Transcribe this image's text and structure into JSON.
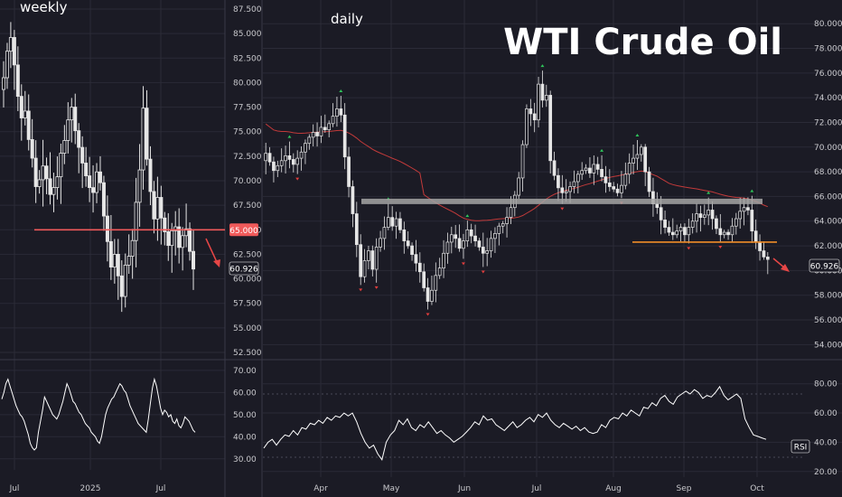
{
  "title": "WTI Crude Oil",
  "colors": {
    "background": "#1b1b25",
    "grid": "#2b2b37",
    "candle": "#e6e6e6",
    "text": "#ffffff",
    "axis_text": "#c8c8cc",
    "level_red": "#f05a5a",
    "level_orange": "#f08c28",
    "level_gray": "#a5a5a5",
    "ma_line": "#c23a3a",
    "rsi_line": "#ffffff",
    "arrow_red": "#e64646",
    "signal_up": "#2ec45a",
    "signal_down": "#e03c3c"
  },
  "chart_data": [
    {
      "type": "line",
      "panel": "weekly",
      "label": "weekly",
      "x_ticks": [
        "Jul",
        "2025",
        "Jul"
      ],
      "y_ticks": [
        "87.500",
        "85.000",
        "82.500",
        "80.000",
        "77.500",
        "75.000",
        "72.500",
        "70.000",
        "67.500",
        "65.000",
        "62.500",
        "60.000",
        "57.500",
        "55.000",
        "52.500"
      ],
      "ylim": [
        52.5,
        87.5
      ],
      "support_level": 65.0,
      "support_label": "65.000",
      "last_price": "60.926",
      "close_series": [
        80.5,
        83.2,
        84.6,
        81.8,
        78.6,
        76.4,
        77.1,
        74.2,
        72.3,
        69.4,
        70.1,
        71.5,
        70.2,
        68.6,
        69.3,
        70.4,
        72.8,
        74.1,
        76.2,
        77.5,
        75.1,
        73.4,
        71.8,
        70.5,
        69.3,
        68.8,
        70.9,
        69.8,
        66.4,
        63.8,
        61.2,
        62.5,
        60.3,
        58.2,
        61.4,
        62.3,
        63.9,
        67.8,
        71.1,
        77.4,
        72.2,
        68.9,
        66.1,
        68.3,
        66.2,
        64.8,
        63.4,
        64.9,
        65.3,
        63.2,
        64.4,
        65.1,
        62.8,
        61.0
      ]
    },
    {
      "type": "line",
      "panel": "daily",
      "label": "daily",
      "x_ticks": [
        "Apr",
        "May",
        "Jun",
        "Jul",
        "Aug",
        "Sep",
        "Oct"
      ],
      "y_ticks": [
        "80.000",
        "78.000",
        "76.000",
        "74.000",
        "72.000",
        "70.000",
        "68.000",
        "66.000",
        "64.000",
        "62.000",
        "60.000",
        "58.000",
        "56.000",
        "54.000"
      ],
      "ylim": [
        53.0,
        80.6
      ],
      "resistance_level": 65.6,
      "support_level": 62.3,
      "last_price": "60.926",
      "close_series": [
        69.5,
        68.8,
        68.1,
        68.5,
        68.9,
        69.3,
        69.0,
        68.6,
        69.1,
        69.6,
        70.3,
        70.8,
        71.2,
        70.9,
        71.6,
        71.4,
        71.9,
        72.5,
        73.1,
        72.6,
        69.2,
        66.8,
        64.6,
        62.1,
        59.5,
        60.8,
        61.6,
        60.1,
        61.9,
        62.6,
        63.5,
        64.3,
        63.6,
        64.2,
        63.3,
        62.4,
        62.0,
        61.3,
        60.6,
        59.9,
        58.6,
        57.5,
        58.4,
        59.6,
        60.2,
        61.4,
        62.3,
        62.9,
        62.6,
        61.8,
        62.4,
        63.3,
        62.8,
        62.4,
        61.9,
        61.4,
        61.6,
        62.6,
        63.0,
        63.6,
        63.8,
        64.3,
        65.1,
        66.1,
        67.5,
        70.2,
        73.1,
        72.7,
        72.2,
        75.1,
        73.8,
        74.2,
        68.9,
        67.7,
        66.7,
        66.3,
        66.4,
        66.8,
        67.2,
        67.8,
        68.1,
        68.3,
        67.9,
        68.6,
        68.2,
        67.6,
        67.1,
        66.8,
        66.6,
        66.3,
        66.9,
        67.8,
        68.7,
        69.1,
        69.4,
        70.0,
        68.0,
        66.4,
        65.4,
        65.1,
        64.1,
        63.5,
        63.1,
        62.9,
        63.2,
        63.5,
        62.9,
        63.5,
        64.0,
        64.6,
        64.3,
        64.5,
        64.9,
        64.2,
        63.4,
        62.9,
        63.1,
        62.9,
        63.6,
        64.2,
        64.8,
        65.1,
        64.9,
        63.2,
        62.3,
        61.6,
        61.1,
        60.9
      ]
    },
    {
      "type": "line",
      "panel": "weekly-rsi",
      "y_ticks": [
        "70.00",
        "60.00",
        "50.00",
        "40.00",
        "30.00"
      ],
      "ylim": [
        25,
        72
      ],
      "values": [
        57,
        60,
        64,
        66,
        63,
        60,
        57,
        54,
        52,
        50,
        49,
        47,
        44,
        41,
        37,
        35,
        34,
        35,
        42,
        47,
        52,
        58,
        56,
        54,
        52,
        50,
        49,
        48,
        50,
        53,
        56,
        60,
        64,
        62,
        59,
        56,
        55,
        53,
        51,
        50,
        48,
        46,
        45,
        44,
        42,
        41,
        40,
        38,
        37,
        40,
        45,
        50,
        53,
        55,
        57,
        58,
        60,
        62,
        64,
        63,
        61,
        60,
        57,
        54,
        52,
        50,
        48,
        46,
        45,
        44,
        43,
        42,
        48,
        55,
        62,
        66,
        63,
        58,
        53,
        50,
        52,
        51,
        49,
        50,
        47,
        46,
        48,
        45,
        44,
        46,
        49,
        48,
        47,
        45,
        43,
        42
      ]
    },
    {
      "type": "line",
      "panel": "daily-rsi",
      "label": "RSI",
      "y_ticks": [
        "80.00",
        "60.00",
        "40.00",
        "20.00"
      ],
      "ylim": [
        18,
        86
      ],
      "values": [
        36,
        40,
        42,
        38,
        42,
        45,
        44,
        48,
        45,
        50,
        49,
        53,
        52,
        55,
        53,
        57,
        55,
        58,
        57,
        60,
        58,
        60,
        54,
        46,
        40,
        36,
        38,
        32,
        28,
        40,
        45,
        48,
        55,
        52,
        56,
        50,
        48,
        52,
        50,
        54,
        50,
        46,
        48,
        45,
        43,
        40,
        42,
        44,
        47,
        50,
        54,
        52,
        58,
        55,
        56,
        52,
        50,
        48,
        51,
        54,
        50,
        52,
        55,
        57,
        54,
        59,
        57,
        60,
        55,
        52,
        50,
        53,
        51,
        49,
        51,
        48,
        50,
        47,
        46,
        47,
        52,
        50,
        55,
        57,
        56,
        60,
        58,
        62,
        60,
        58,
        64,
        63,
        67,
        65,
        70,
        72,
        68,
        66,
        71,
        73,
        75,
        73,
        76,
        74,
        70,
        72,
        71,
        74,
        78,
        72,
        69,
        71,
        73,
        70,
        56,
        50,
        45,
        44,
        43,
        42
      ]
    }
  ]
}
